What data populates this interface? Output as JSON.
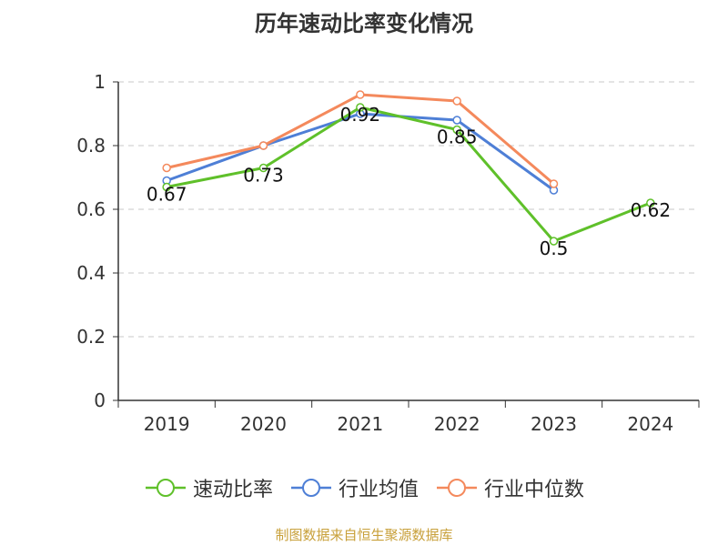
{
  "chart_data": {
    "type": "line",
    "title": "历年速动比率变化情况",
    "categories": [
      "2019",
      "2020",
      "2021",
      "2022",
      "2023",
      "2024"
    ],
    "ylim": [
      0,
      1
    ],
    "yticks": [
      "0",
      "0.2",
      "0.4",
      "0.6",
      "0.8",
      "1"
    ],
    "grid": true,
    "legend_position": "bottom",
    "series": [
      {
        "name": "速动比率",
        "color": "#5fc02a",
        "values": [
          0.67,
          0.73,
          0.92,
          0.85,
          0.5,
          0.62
        ],
        "labels": [
          "0.67",
          "0.73",
          "0.92",
          "0.85",
          "0.5",
          "0.62"
        ]
      },
      {
        "name": "行业均值",
        "color": "#4e7fd6",
        "values": [
          0.69,
          0.8,
          0.9,
          0.88,
          0.66,
          null
        ]
      },
      {
        "name": "行业中位数",
        "color": "#f4895c",
        "values": [
          0.73,
          0.8,
          0.96,
          0.94,
          0.68,
          null
        ]
      }
    ]
  },
  "source": "制图数据来自恒生聚源数据库"
}
